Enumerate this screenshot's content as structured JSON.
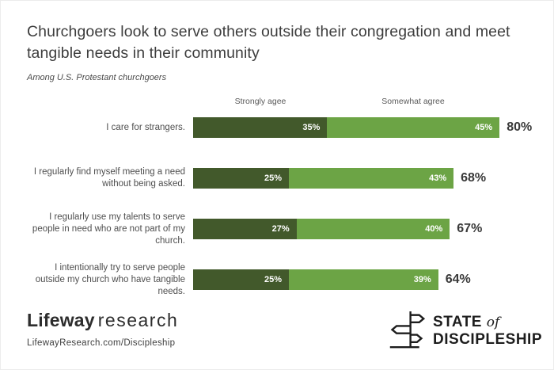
{
  "title": "Churchgoers look to serve others outside their congregation and meet tangible needs in their community",
  "subtitle": "Among U.S. Protestant churchgoers",
  "legend": {
    "strongly_label": "Strongly agee",
    "somewhat_label": "Somewhat agree"
  },
  "chart_data": {
    "type": "bar",
    "orientation": "horizontal",
    "stacked": true,
    "title": "Churchgoers look to serve others outside their congregation and meet tangible needs in their community",
    "subtitle": "Among U.S. Protestant churchgoers",
    "series_names": [
      "Strongly agee",
      "Somewhat agree"
    ],
    "colors": {
      "strongly_agree": "#42592b",
      "somewhat_agree": "#6ca445",
      "total_text": "#393939"
    },
    "x_range": [
      0,
      100
    ],
    "grid": false,
    "legend_position": "top",
    "rows": [
      {
        "label": "I care for strangers.",
        "strongly": 35,
        "strongly_label": "35%",
        "somewhat": 45,
        "somewhat_label": "45%",
        "total": 80,
        "total_label": "80%"
      },
      {
        "label": "I regularly find myself meeting a need without being asked.",
        "strongly": 25,
        "strongly_label": "25%",
        "somewhat": 43,
        "somewhat_label": "43%",
        "total": 68,
        "total_label": "68%"
      },
      {
        "label": "I regularly use my talents to serve people in need who are not part of my church.",
        "strongly": 27,
        "strongly_label": "27%",
        "somewhat": 40,
        "somewhat_label": "40%",
        "total": 67,
        "total_label": "67%"
      },
      {
        "label": "I intentionally try to serve people outside my church who have tangible needs.",
        "strongly": 25,
        "strongly_label": "25%",
        "somewhat": 39,
        "somewhat_label": "39%",
        "total": 64,
        "total_label": "64%"
      }
    ]
  },
  "footer": {
    "brand_bold": "Lifeway",
    "brand_light": "research",
    "url": "LifewayResearch.com/Discipleship",
    "logo_state": "STATE",
    "logo_of": "of",
    "logo_discipleship": "DISCIPLESHIP"
  }
}
